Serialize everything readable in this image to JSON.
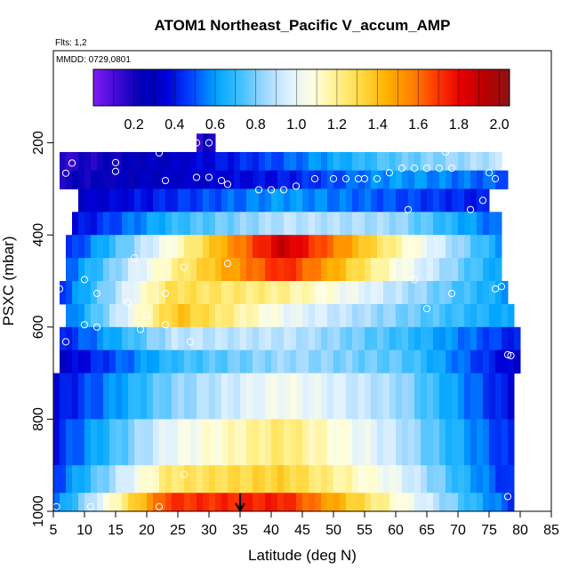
{
  "chart_data": {
    "type": "heatmap",
    "title": "ATOM1 Northeast_Pacific V_accum_AMP",
    "flights_note": "Flts: 1,2",
    "date_note": "MMDD: 0729,0801",
    "xlabel": "Latitude (deg N)",
    "ylabel": "PSXC (mbar)",
    "xlim": [
      5,
      85
    ],
    "ylim": [
      1000,
      0
    ],
    "x_ticks": [
      5,
      10,
      15,
      20,
      25,
      30,
      35,
      40,
      45,
      50,
      55,
      60,
      65,
      70,
      75,
      80,
      85
    ],
    "y_ticks": [
      200,
      400,
      600,
      800,
      1000
    ],
    "colorbar": {
      "range": [
        0,
        2.05
      ],
      "ticks": [
        "0.2",
        "0.4",
        "0.6",
        "0.8",
        "1.0",
        "1.2",
        "1.4",
        "1.6",
        "1.8",
        "2.0"
      ],
      "tick_values": [
        0.2,
        0.4,
        0.6,
        0.8,
        1.0,
        1.2,
        1.4,
        1.6,
        1.8,
        2.0
      ],
      "colors": [
        "#7f1cf2",
        "#3d0ad6",
        "#0000b4",
        "#0000d8",
        "#0044ff",
        "#00a4ff",
        "#3fc0ff",
        "#9fd8ff",
        "#dff1ff",
        "#ffffe0",
        "#fff08a",
        "#ffd83c",
        "#ffb000",
        "#ff8200",
        "#ff3a00",
        "#e80000",
        "#b80000",
        "#8a1414"
      ]
    },
    "grid": {
      "lat_step": 1,
      "pressure_levels": [
        {
          "p": [
            180,
            220
          ],
          "lat": [
            28,
            31
          ],
          "values": [
            0.1,
            0.2,
            0.2
          ]
        },
        {
          "p": [
            220,
            260
          ],
          "lat": [
            6,
            77
          ],
          "values": [
            0.15,
            0.3,
            0.5,
            0.75,
            0.9
          ]
        },
        {
          "p": [
            260,
            300
          ],
          "lat": [
            6,
            78
          ],
          "values": [
            0.2,
            0.3,
            0.4,
            0.6,
            0.5
          ]
        },
        {
          "p": [
            300,
            350
          ],
          "lat": [
            9,
            75
          ],
          "values": [
            0.3,
            0.45,
            0.6,
            0.5,
            0.4
          ]
        },
        {
          "p": [
            350,
            400
          ],
          "lat": [
            8,
            77
          ],
          "values": [
            0.35,
            0.7,
            0.9,
            0.85,
            0.5
          ]
        },
        {
          "p": [
            400,
            450
          ],
          "lat": [
            7,
            77
          ],
          "values": [
            0.4,
            1.1,
            1.9,
            1.2,
            0.6
          ]
        },
        {
          "p": [
            450,
            500
          ],
          "lat": [
            7,
            77
          ],
          "values": [
            0.5,
            1.2,
            1.75,
            1.1,
            0.6
          ]
        },
        {
          "p": [
            500,
            550
          ],
          "lat": [
            6,
            78
          ],
          "values": [
            0.45,
            1.3,
            1.2,
            0.9,
            0.6
          ]
        },
        {
          "p": [
            550,
            600
          ],
          "lat": [
            7,
            79
          ],
          "values": [
            0.5,
            1.4,
            1.0,
            0.8,
            0.6
          ]
        },
        {
          "p": [
            600,
            650
          ],
          "lat": [
            6,
            80
          ],
          "values": [
            0.4,
            0.9,
            0.9,
            0.7,
            0.4
          ]
        },
        {
          "p": [
            650,
            700
          ],
          "lat": [
            6,
            80
          ],
          "values": [
            0.3,
            0.7,
            0.85,
            0.75,
            0.3
          ]
        },
        {
          "p": [
            700,
            800
          ],
          "lat": [
            5,
            79
          ],
          "values": [
            0.35,
            0.8,
            1.05,
            0.85,
            0.35
          ]
        },
        {
          "p": [
            800,
            900
          ],
          "lat": [
            5,
            79
          ],
          "values": [
            0.4,
            1.0,
            1.25,
            0.9,
            0.4
          ]
        },
        {
          "p": [
            900,
            960
          ],
          "lat": [
            5,
            79
          ],
          "values": [
            0.45,
            1.25,
            1.35,
            1.0,
            0.4
          ]
        },
        {
          "p": [
            960,
            1010
          ],
          "lat": [
            5,
            79
          ],
          "values": [
            0.5,
            1.7,
            1.75,
            1.1,
            0.45
          ]
        }
      ]
    },
    "observation_points": [
      [
        28,
        200
      ],
      [
        30,
        200
      ],
      [
        8,
        244
      ],
      [
        15,
        243
      ],
      [
        22,
        222
      ],
      [
        7,
        266
      ],
      [
        15,
        262
      ],
      [
        23,
        282
      ],
      [
        28,
        275
      ],
      [
        30,
        275
      ],
      [
        32,
        282
      ],
      [
        33,
        290
      ],
      [
        38,
        302
      ],
      [
        40,
        302
      ],
      [
        42,
        302
      ],
      [
        44,
        294
      ],
      [
        47,
        278
      ],
      [
        50,
        278
      ],
      [
        52,
        278
      ],
      [
        54,
        278
      ],
      [
        55,
        278
      ],
      [
        57,
        278
      ],
      [
        59,
        265
      ],
      [
        61,
        255
      ],
      [
        63,
        255
      ],
      [
        65,
        255
      ],
      [
        67,
        255
      ],
      [
        68,
        220
      ],
      [
        69,
        255
      ],
      [
        72,
        345
      ],
      [
        74,
        325
      ],
      [
        75,
        265
      ],
      [
        76,
        278
      ],
      [
        62,
        345
      ],
      [
        18,
        450
      ],
      [
        26,
        470
      ],
      [
        33,
        462
      ],
      [
        6,
        517
      ],
      [
        10,
        497
      ],
      [
        12,
        527
      ],
      [
        17,
        547
      ],
      [
        20,
        575
      ],
      [
        23,
        527
      ],
      [
        63,
        497
      ],
      [
        65,
        560
      ],
      [
        69,
        527
      ],
      [
        76,
        517
      ],
      [
        77,
        512
      ],
      [
        10,
        595
      ],
      [
        12,
        600
      ],
      [
        19,
        605
      ],
      [
        23,
        595
      ],
      [
        7,
        632
      ],
      [
        27,
        632
      ],
      [
        78,
        660
      ],
      [
        78.5,
        662
      ],
      [
        26,
        920
      ],
      [
        78,
        968
      ],
      [
        5.5,
        990
      ],
      [
        11,
        990
      ],
      [
        22,
        990
      ]
    ],
    "arrow": {
      "x": 35,
      "y": 1000
    }
  }
}
